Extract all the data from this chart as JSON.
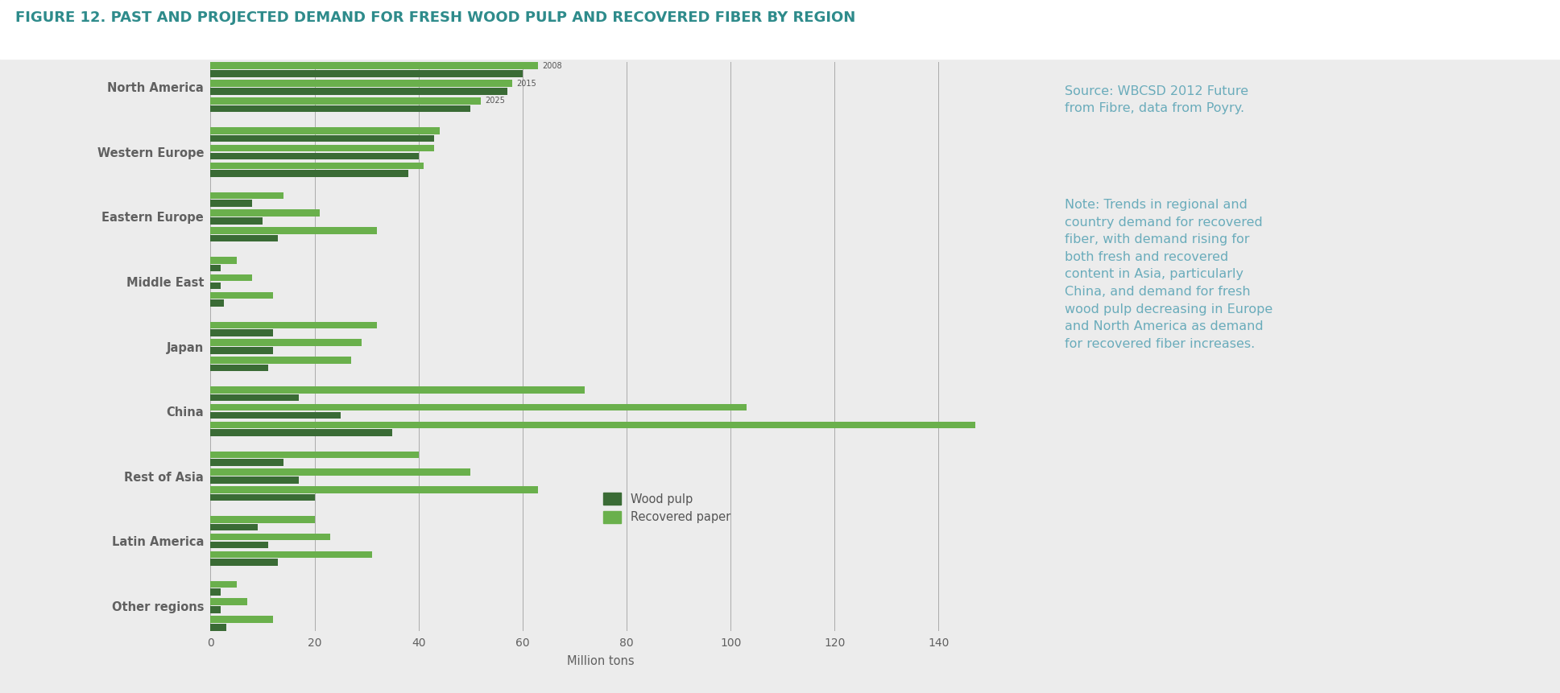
{
  "title": "FIGURE 12. PAST AND PROJECTED DEMAND FOR FRESH WOOD PULP AND RECOVERED FIBER BY REGION",
  "title_color": "#2e8b8b",
  "regions": [
    "North America",
    "Western Europe",
    "Eastern Europe",
    "Middle East",
    "Japan",
    "China",
    "Rest of Asia",
    "Latin America",
    "Other regions"
  ],
  "years": [
    "2008",
    "2015",
    "2025"
  ],
  "wood_pulp": {
    "North America": [
      60,
      57,
      50
    ],
    "Western Europe": [
      43,
      40,
      38
    ],
    "Eastern Europe": [
      8,
      10,
      13
    ],
    "Middle East": [
      2,
      2,
      2.5
    ],
    "Japan": [
      12,
      12,
      11
    ],
    "China": [
      17,
      25,
      35
    ],
    "Rest of Asia": [
      14,
      17,
      20
    ],
    "Latin America": [
      9,
      11,
      13
    ],
    "Other regions": [
      2,
      2,
      3
    ]
  },
  "recovered_paper": {
    "North America": [
      63,
      58,
      52
    ],
    "Western Europe": [
      44,
      43,
      41
    ],
    "Eastern Europe": [
      14,
      21,
      32
    ],
    "Middle East": [
      5,
      8,
      12
    ],
    "Japan": [
      32,
      29,
      27
    ],
    "China": [
      72,
      103,
      147
    ],
    "Rest of Asia": [
      40,
      50,
      63
    ],
    "Latin America": [
      20,
      23,
      31
    ],
    "Other regions": [
      5,
      7,
      12
    ]
  },
  "color_wood_pulp": "#3a6b35",
  "color_recovered_paper": "#6ab04c",
  "bg_color": "#ececec",
  "xlabel": "Million tons",
  "xlim_max": 150,
  "xticks": [
    0,
    20,
    40,
    60,
    80,
    100,
    120,
    140
  ],
  "source_text": "Source: WBCSD 2012 Future\nfrom Fibre, data from Poyry.",
  "note_text": "Note: Trends in regional and\ncountry demand for recovered\nfiber, with demand rising for\nboth fresh and recovered\ncontent in Asia, particularly\nChina, and demand for fresh\nwood pulp decreasing in Europe\nand North America as demand\nfor recovered fiber increases.",
  "note_color": "#6aacbb",
  "legend_wood_pulp": "Wood pulp",
  "legend_recovered": "Recovered paper"
}
